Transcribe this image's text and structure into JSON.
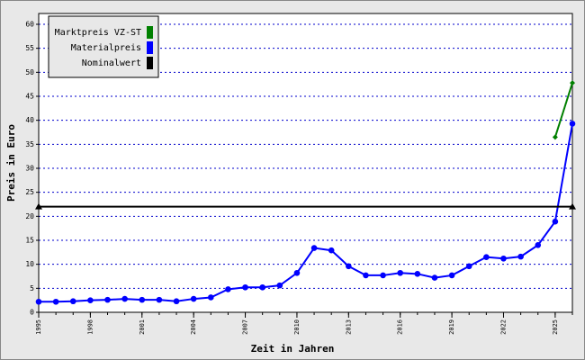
{
  "chart_data": {
    "type": "line",
    "xlabel": "Zeit in Jahren",
    "ylabel": "Preis in Euro",
    "x": [
      1995,
      1996,
      1997,
      1998,
      1999,
      2000,
      2001,
      2002,
      2003,
      2004,
      2005,
      2006,
      2007,
      2008,
      2009,
      2010,
      2011,
      2012,
      2013,
      2014,
      2015,
      2016,
      2017,
      2018,
      2019,
      2020,
      2021,
      2022,
      2023,
      2024,
      2025,
      2026
    ],
    "series": [
      {
        "name": "Marktpreis VZ-ST",
        "color": "#008000",
        "marker": "diamond",
        "x": [
          2025,
          2026
        ],
        "values": [
          36.5,
          47.8
        ]
      },
      {
        "name": "Materialpreis",
        "color": "#0000ff",
        "marker": "circle",
        "x": [
          1995,
          1996,
          1997,
          1998,
          1999,
          2000,
          2001,
          2002,
          2003,
          2004,
          2005,
          2006,
          2007,
          2008,
          2009,
          2010,
          2011,
          2012,
          2013,
          2014,
          2015,
          2016,
          2017,
          2018,
          2019,
          2020,
          2021,
          2022,
          2023,
          2024,
          2025,
          2026
        ],
        "values": [
          2.2,
          2.2,
          2.3,
          2.5,
          2.6,
          2.8,
          2.6,
          2.6,
          2.3,
          2.8,
          3.1,
          4.8,
          5.2,
          5.2,
          5.6,
          8.2,
          13.4,
          12.9,
          9.6,
          7.7,
          7.7,
          8.2,
          8.0,
          7.2,
          7.7,
          9.6,
          11.5,
          11.2,
          11.6,
          14.0,
          18.9,
          39.3
        ]
      },
      {
        "name": "Nominalwert",
        "color": "#000000",
        "marker": "triangle",
        "x": [
          1995,
          2026
        ],
        "values": [
          22,
          22
        ]
      }
    ],
    "xlim": [
      1995,
      2026
    ],
    "xticks": [
      1995,
      1998,
      2001,
      2004,
      2007,
      2010,
      2013,
      2016,
      2019,
      2022,
      2025
    ],
    "ylim": [
      0,
      62.25
    ],
    "yticks": [
      0,
      5,
      10,
      15,
      20,
      25,
      30,
      35,
      40,
      45,
      50,
      55,
      60
    ],
    "grid": true,
    "legend": "top-left"
  }
}
